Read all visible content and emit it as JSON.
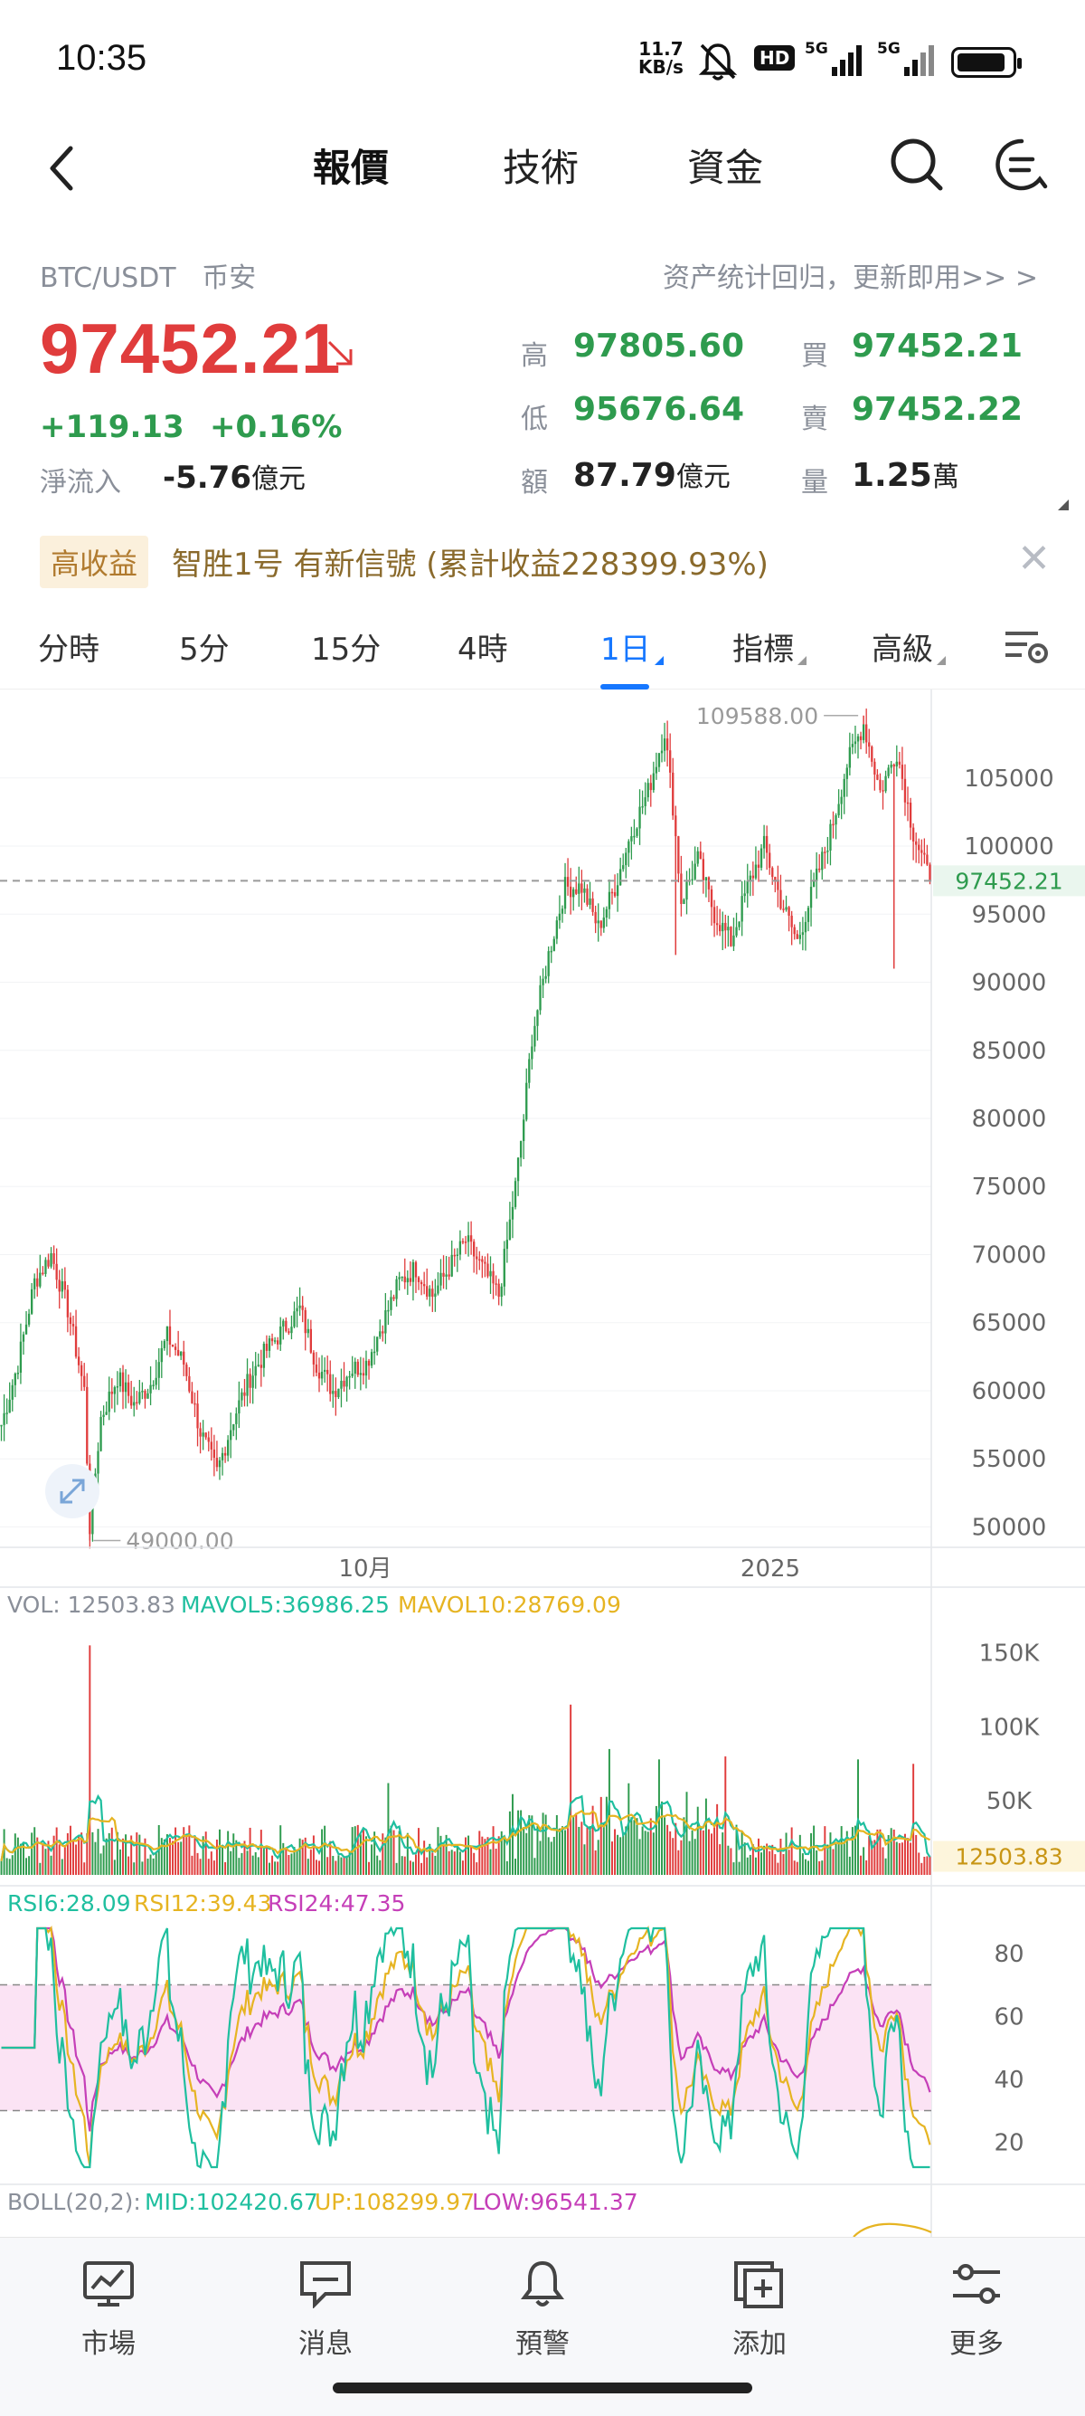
{
  "status_bar": {
    "time": "10:35",
    "net_rate_value": "11.7",
    "net_rate_unit": "KB/s",
    "hd": "HD",
    "signal1": "5G",
    "signal2": "5G"
  },
  "nav": {
    "tabs": [
      {
        "label": "報價",
        "active": true
      },
      {
        "label": "技術",
        "active": false
      },
      {
        "label": "資金",
        "active": false
      }
    ]
  },
  "quote": {
    "pair": "BTC/USDT",
    "exchange": "币安",
    "promo": "资产统计回归，更新即用>> >",
    "price": "97452.21",
    "change": "+119.13",
    "change_pct": "+0.16%",
    "net_inflow_label": "淨流入",
    "net_inflow_value": "-5.76",
    "net_inflow_unit": "億元",
    "stats": {
      "high_label": "高",
      "high": "97805.60",
      "low_label": "低",
      "low": "95676.64",
      "amount_label": "額",
      "amount": "87.79",
      "amount_unit": "億元",
      "bid_label": "買",
      "bid": "97452.21",
      "ask_label": "賣",
      "ask": "97452.22",
      "volume_label": "量",
      "volume": "1.25",
      "volume_unit": "萬"
    }
  },
  "signal": {
    "badge": "高收益",
    "text": "智胜1号 有新信號 (累計收益228399.93%)"
  },
  "periods": [
    {
      "label": "分時",
      "active": false,
      "dropdown": false
    },
    {
      "label": "5分",
      "active": false,
      "dropdown": false
    },
    {
      "label": "15分",
      "active": false,
      "dropdown": false
    },
    {
      "label": "4時",
      "active": false,
      "dropdown": false
    },
    {
      "label": "1日",
      "active": true,
      "dropdown": true
    },
    {
      "label": "指標",
      "active": false,
      "dropdown": true
    },
    {
      "label": "高級",
      "active": false,
      "dropdown": true
    }
  ],
  "chart_data": {
    "type": "candlestick",
    "price_axis_ticks": [
      "105000",
      "100000",
      "95000",
      "90000",
      "85000",
      "80000",
      "75000",
      "70000",
      "65000",
      "60000",
      "55000",
      "50000"
    ],
    "price_axis_values": [
      105000,
      100000,
      95000,
      90000,
      85000,
      80000,
      75000,
      70000,
      65000,
      60000,
      55000,
      50000
    ],
    "ylim": [
      48500,
      111500
    ],
    "x_labels": [
      "10月",
      "2025"
    ],
    "high_marker": "109588.00",
    "low_marker": "49000.00",
    "current_price_tag": "97452.21",
    "current_price": 97452.21,
    "up_color": "#2e9b4e",
    "down_color": "#e03c3c",
    "price_path": [
      [
        0,
        57500
      ],
      [
        6,
        62000
      ],
      [
        12,
        68000
      ],
      [
        18,
        70000
      ],
      [
        24,
        66000
      ],
      [
        30,
        60000
      ],
      [
        32,
        50000
      ],
      [
        36,
        58000
      ],
      [
        42,
        61000
      ],
      [
        48,
        59000
      ],
      [
        54,
        60500
      ],
      [
        60,
        64000
      ],
      [
        66,
        62000
      ],
      [
        72,
        57000
      ],
      [
        78,
        54000
      ],
      [
        84,
        58000
      ],
      [
        90,
        61000
      ],
      [
        96,
        63000
      ],
      [
        102,
        64500
      ],
      [
        108,
        66000
      ],
      [
        114,
        62000
      ],
      [
        120,
        60000
      ],
      [
        126,
        61500
      ],
      [
        132,
        62000
      ],
      [
        138,
        65000
      ],
      [
        144,
        68000
      ],
      [
        150,
        69000
      ],
      [
        156,
        67000
      ],
      [
        162,
        69000
      ],
      [
        168,
        71000
      ],
      [
        174,
        69000
      ],
      [
        180,
        67000
      ],
      [
        186,
        75000
      ],
      [
        189,
        80000
      ],
      [
        192,
        86000
      ],
      [
        198,
        92000
      ],
      [
        204,
        97000
      ],
      [
        210,
        97000
      ],
      [
        216,
        94000
      ],
      [
        222,
        97000
      ],
      [
        228,
        101000
      ],
      [
        234,
        104000
      ],
      [
        240,
        108500
      ],
      [
        243,
        103000
      ],
      [
        246,
        96000
      ],
      [
        252,
        99000
      ],
      [
        258,
        95000
      ],
      [
        264,
        93000
      ],
      [
        270,
        97000
      ],
      [
        276,
        100000
      ],
      [
        282,
        96000
      ],
      [
        288,
        93000
      ],
      [
        294,
        97000
      ],
      [
        300,
        101000
      ],
      [
        306,
        106000
      ],
      [
        312,
        109000
      ],
      [
        318,
        104000
      ],
      [
        324,
        107000
      ],
      [
        330,
        101000
      ],
      [
        336,
        97452
      ]
    ],
    "volume": {
      "summary": "VOL: 12503.83",
      "mavol5_label": "MAVOL5:36986.25",
      "mavol10_label": "MAVOL10:28769.09",
      "axis_ticks": [
        "150K",
        "100K",
        "50K"
      ],
      "axis_values": [
        150000,
        100000,
        50000
      ],
      "ylim": [
        0,
        165000
      ],
      "current_tag": "12503.83",
      "current": 12503.83,
      "spikes": [
        [
          32,
          155000
        ],
        [
          140,
          62000
        ],
        [
          206,
          115000
        ],
        [
          220,
          85000
        ],
        [
          238,
          78000
        ],
        [
          262,
          80000
        ],
        [
          310,
          78000
        ],
        [
          330,
          75000
        ]
      ],
      "mavol5_color": "#1fbf9f",
      "mavol10_color": "#e6b422"
    },
    "rsi": {
      "rsi6_label": "RSI6:28.09",
      "rsi12_label": "RSI12:39.43",
      "rsi24_label": "RSI24:47.35",
      "axis_ticks": [
        "80",
        "60",
        "40",
        "20"
      ],
      "axis_values": [
        80,
        60,
        40,
        20
      ],
      "ylim": [
        10,
        90
      ],
      "band": [
        30,
        70
      ],
      "rsi6_color": "#1fbf9f",
      "rsi12_color": "#e6b422",
      "rsi24_color": "#c53fb8"
    },
    "boll": {
      "label": "BOLL(20,2):",
      "mid_label": "MID:102420.67",
      "up_label": "UP:108299.97",
      "low_label": "LOW:96541.37"
    }
  },
  "bottom_nav": [
    {
      "label": "市場",
      "icon": "market-chart-icon"
    },
    {
      "label": "消息",
      "icon": "message-icon"
    },
    {
      "label": "預警",
      "icon": "bell-icon"
    },
    {
      "label": "添加",
      "icon": "add-box-icon"
    },
    {
      "label": "更多",
      "icon": "more-sliders-icon"
    }
  ]
}
